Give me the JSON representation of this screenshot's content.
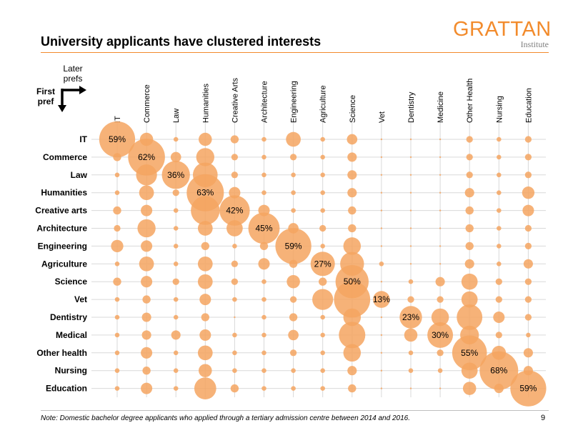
{
  "header": {
    "title": "University applicants have clustered interests",
    "logo_main": "GRATTAN",
    "logo_sub": "Institute"
  },
  "axis_labels": {
    "later_prefs": "Later prefs",
    "first_pref": "First pref"
  },
  "footer": {
    "note": "Note: Domestic bachelor degree applicants who applied through a tertiary admission centre between 2014 and 2016.",
    "page_number": "9"
  },
  "colors": {
    "bubble": "#f4a460",
    "accent": "#f28b2c",
    "grid": "#d9d9d9"
  },
  "chart_data": {
    "type": "bubble-matrix",
    "title": "University applicants have clustered interests",
    "xlabel": "Later prefs",
    "ylabel": "First pref",
    "columns": [
      "IT",
      "Commerce",
      "Law",
      "Humanities",
      "Creative Arts",
      "Architecture",
      "Engineering",
      "Agriculture",
      "Science",
      "Vet",
      "Dentistry",
      "Medicine",
      "Other Health",
      "Nursing",
      "Education"
    ],
    "rows": [
      "IT",
      "Commerce",
      "Law",
      "Humanities",
      "Creative arts",
      "Architecture",
      "Engineering",
      "Agriculture",
      "Science",
      "Vet",
      "Dentistry",
      "Medical",
      "Other health",
      "Nursing",
      "Education"
    ],
    "unit": "percent",
    "diagonal_labels": [
      "59%",
      "62%",
      "36%",
      "63%",
      "42%",
      "45%",
      "59%",
      "27%",
      "50%",
      "13%",
      "23%",
      "30%",
      "55%",
      "68%",
      "59%"
    ],
    "values": [
      [
        59,
        8,
        1,
        8,
        3,
        1,
        10,
        1,
        5,
        0,
        0,
        0,
        2,
        1,
        2
      ],
      [
        3,
        62,
        5,
        15,
        2,
        1,
        2,
        1,
        4,
        0,
        0,
        0,
        2,
        1,
        2
      ],
      [
        1,
        20,
        36,
        28,
        2,
        1,
        1,
        1,
        4,
        0,
        0,
        0,
        2,
        1,
        2
      ],
      [
        1,
        10,
        2,
        63,
        6,
        1,
        1,
        1,
        4,
        0,
        0,
        0,
        4,
        1,
        7
      ],
      [
        3,
        6,
        1,
        38,
        42,
        6,
        1,
        1,
        3,
        0,
        0,
        0,
        3,
        1,
        6
      ],
      [
        2,
        15,
        1,
        10,
        12,
        45,
        5,
        2,
        3,
        0,
        0,
        0,
        3,
        1,
        2
      ],
      [
        7,
        6,
        1,
        3,
        1,
        3,
        59,
        1,
        14,
        0,
        0,
        0,
        3,
        1,
        2
      ],
      [
        1,
        10,
        1,
        10,
        2,
        6,
        3,
        27,
        26,
        1,
        0,
        0,
        4,
        1,
        4
      ],
      [
        3,
        6,
        2,
        10,
        2,
        1,
        8,
        3,
        50,
        0,
        1,
        4,
        12,
        2,
        2
      ],
      [
        1,
        3,
        1,
        6,
        1,
        1,
        2,
        20,
        60,
        13,
        2,
        2,
        12,
        2,
        2
      ],
      [
        1,
        4,
        1,
        3,
        0,
        1,
        3,
        1,
        14,
        0,
        23,
        14,
        30,
        6,
        2
      ],
      [
        1,
        4,
        4,
        6,
        1,
        1,
        5,
        1,
        32,
        0,
        8,
        30,
        16,
        2,
        1
      ],
      [
        1,
        6,
        1,
        10,
        1,
        1,
        2,
        1,
        14,
        0,
        1,
        2,
        55,
        9,
        4
      ],
      [
        1,
        3,
        1,
        8,
        1,
        1,
        1,
        1,
        4,
        0,
        1,
        1,
        12,
        68,
        4
      ],
      [
        1,
        6,
        1,
        22,
        3,
        1,
        1,
        1,
        3,
        0,
        0,
        0,
        8,
        4,
        59
      ]
    ]
  }
}
